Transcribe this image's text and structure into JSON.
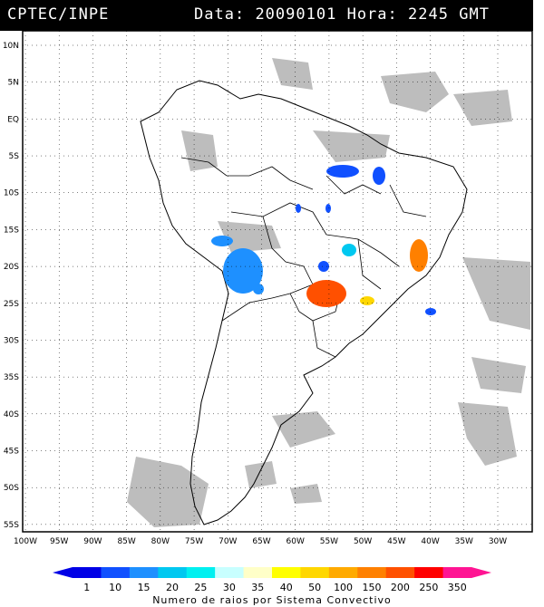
{
  "header": {
    "source": "CPTEC/INPE",
    "data_label": "Data:",
    "date": "20090101",
    "hora_label": "Hora:",
    "time": "2245",
    "tz": "GMT"
  },
  "map": {
    "lat_labels": [
      "10N",
      "5N",
      "EQ",
      "5S",
      "10S",
      "15S",
      "20S",
      "25S",
      "30S",
      "35S",
      "40S",
      "45S",
      "50S",
      "55S"
    ],
    "lon_labels": [
      "100W",
      "95W",
      "90W",
      "85W",
      "80W",
      "75W",
      "70W",
      "65W",
      "60W",
      "55W",
      "50W",
      "45W",
      "40W",
      "35W",
      "30W"
    ]
  },
  "legend": {
    "caption": "Numero de raios por Sistema Convectivo",
    "ticks": [
      "1",
      "10",
      "15",
      "20",
      "25",
      "30",
      "35",
      "40",
      "50",
      "100",
      "150",
      "200",
      "250",
      "350"
    ],
    "colors": [
      "#0000e6",
      "#1050ff",
      "#1e90ff",
      "#00c8f0",
      "#00f0f0",
      "#c8ffff",
      "#ffffc8",
      "#ffff00",
      "#ffd700",
      "#ffaa00",
      "#ff8000",
      "#ff5000",
      "#ff0000",
      "#ff1493"
    ]
  },
  "colors": {
    "cloud": "#bdbdbd",
    "land": "#ffffff",
    "border": "#000000"
  }
}
